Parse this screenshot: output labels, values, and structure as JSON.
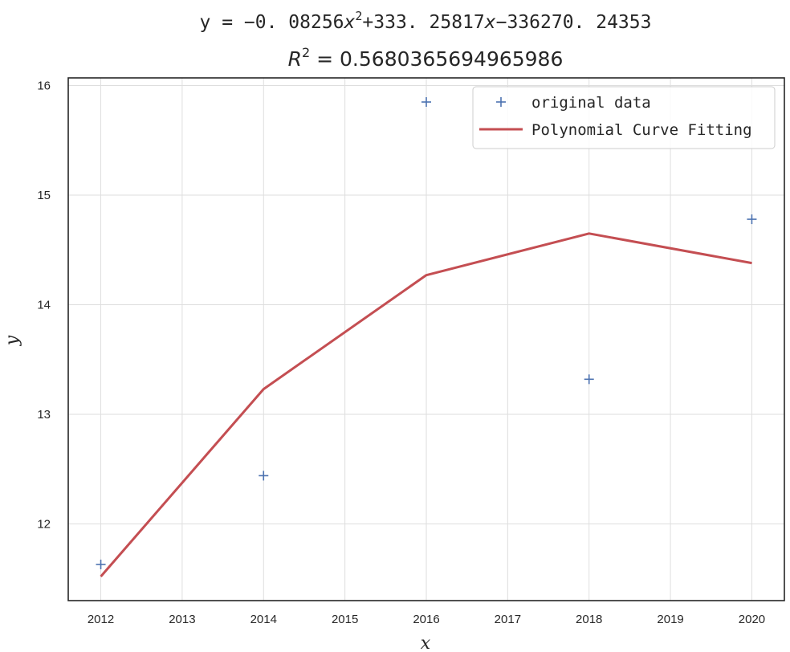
{
  "chart_data": {
    "type": "line",
    "title": "y = −0.08256x²+333.25817x−336270.24353",
    "title_parts": {
      "prefix": "y = −0. 08256",
      "var1": "x",
      "sup": "2",
      "middle": "+333. 25817",
      "var2": "x",
      "suffix": "−336270. 24353"
    },
    "subtitle": "R² = 0.5680365694965986",
    "subtitle_parts": {
      "var": "R",
      "sup": "2",
      "rest": " = 0.5680365694965986"
    },
    "xlabel": "x",
    "ylabel": "y",
    "xlim": [
      2011.6,
      2020.4
    ],
    "ylim": [
      11.3,
      16.07
    ],
    "xticks": [
      2012,
      2013,
      2014,
      2015,
      2016,
      2017,
      2018,
      2019,
      2020
    ],
    "yticks": [
      12,
      13,
      14,
      15,
      16
    ],
    "grid": true,
    "legend_position": "top-right",
    "series": [
      {
        "name": "original data",
        "kind": "scatter",
        "marker": "+",
        "color": "#4c72b0",
        "x": [
          2012,
          2014,
          2016,
          2018,
          2020
        ],
        "y": [
          11.63,
          12.44,
          15.85,
          13.32,
          14.78
        ]
      },
      {
        "name": "Polynomial Curve Fitting",
        "kind": "line",
        "color": "#c44e52",
        "x": [
          2012,
          2014,
          2016,
          2018,
          2020
        ],
        "y": [
          11.52,
          13.23,
          14.27,
          14.65,
          14.38
        ]
      }
    ]
  }
}
